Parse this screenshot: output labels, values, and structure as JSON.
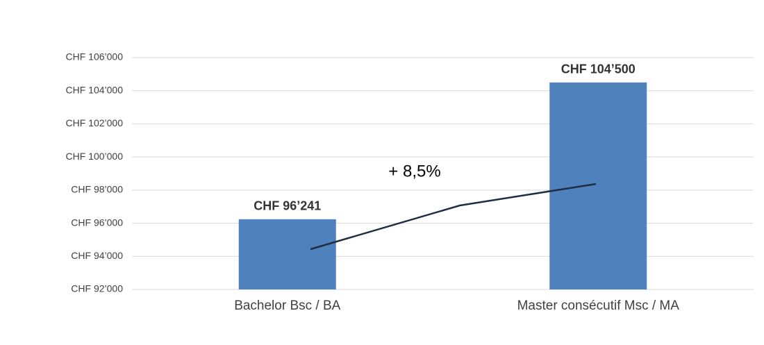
{
  "chart_data": {
    "type": "bar",
    "categories": [
      "Bachelor Bsc / BA",
      "Master consécutif Msc / MA"
    ],
    "values": [
      96241,
      104500
    ],
    "value_labels": [
      "CHF 96’241",
      "CHF 104’500"
    ],
    "color": "#4f81bd",
    "ylim": [
      92000,
      106000
    ],
    "yticks": [
      {
        "value": 92000,
        "label": "CHF 92’000"
      },
      {
        "value": 94000,
        "label": "CHF 94’000"
      },
      {
        "value": 96000,
        "label": "CHF 96’000"
      },
      {
        "value": 98000,
        "label": "CHF 98’000"
      },
      {
        "value": 100000,
        "label": "CHF 100’000"
      },
      {
        "value": 102000,
        "label": "CHF 102’000"
      },
      {
        "value": 104000,
        "label": "CHF 104’000"
      },
      {
        "value": 106000,
        "label": "CHF 106’000"
      }
    ],
    "grid": true,
    "annotation": "+ 8,5%"
  }
}
